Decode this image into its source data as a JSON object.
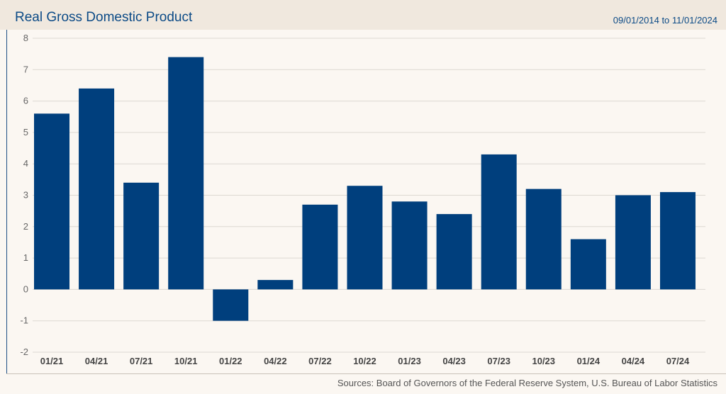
{
  "header": {
    "title": "Real Gross Domestic Product",
    "date_range": "09/01/2014 to 11/01/2024"
  },
  "footer": {
    "sources": "Sources: Board of Governors of the Federal Reserve System, U.S. Bureau of Labor Statistics"
  },
  "chart_data": {
    "type": "bar",
    "title": "Real Gross Domestic Product",
    "categories": [
      "01/21",
      "04/21",
      "07/21",
      "10/21",
      "01/22",
      "04/22",
      "07/22",
      "10/22",
      "01/23",
      "04/23",
      "07/23",
      "10/23",
      "01/24",
      "04/24",
      "07/24"
    ],
    "values": [
      5.6,
      6.4,
      3.4,
      7.4,
      -1.0,
      0.3,
      2.7,
      3.3,
      2.8,
      2.4,
      4.3,
      3.2,
      1.6,
      3.0,
      3.1
    ],
    "ylim": [
      -2,
      8
    ],
    "yticks": [
      -2,
      -1,
      0,
      1,
      2,
      3,
      4,
      5,
      6,
      7,
      8
    ],
    "grid": true,
    "bar_color": "#003f7d",
    "xlabel": "",
    "ylabel": ""
  }
}
